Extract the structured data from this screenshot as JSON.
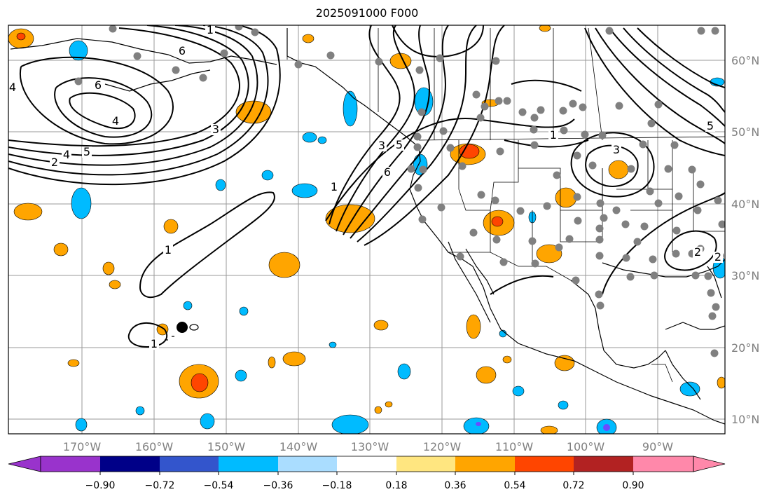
{
  "title": "2025091000 F000",
  "map": {
    "lon_labels": [
      "170°W",
      "160°W",
      "150°W",
      "140°W",
      "130°W",
      "120°W",
      "110°W",
      "100°W",
      "90°W"
    ],
    "lat_labels": [
      "60°N",
      "50°N",
      "40°N",
      "30°N",
      "20°N",
      "10°N"
    ],
    "contour_labels": [
      "1",
      "1",
      "1",
      "1",
      "1",
      "2",
      "2",
      "3",
      "3",
      "3",
      "4",
      "4",
      "5",
      "5",
      "5",
      "6",
      "6",
      "6",
      "4",
      "2"
    ],
    "gridline_color": "#999999"
  },
  "colorbar": {
    "ticks": [
      "−0.90",
      "−0.72",
      "−0.54",
      "−0.36",
      "−0.18",
      "0.18",
      "0.36",
      "0.54",
      "0.72",
      "0.90"
    ],
    "colors": [
      "#9933cc",
      "#000088",
      "#3355cc",
      "#00bbff",
      "#aaddff",
      "#ffffff",
      "#ffe680",
      "#ffa500",
      "#ff4500",
      "#b22222",
      "#ff88aa"
    ]
  },
  "fill_colors": {
    "orange": "#ffa500",
    "red": "#ff4500",
    "cyan": "#00bbff",
    "purple": "#6a4cff"
  }
}
